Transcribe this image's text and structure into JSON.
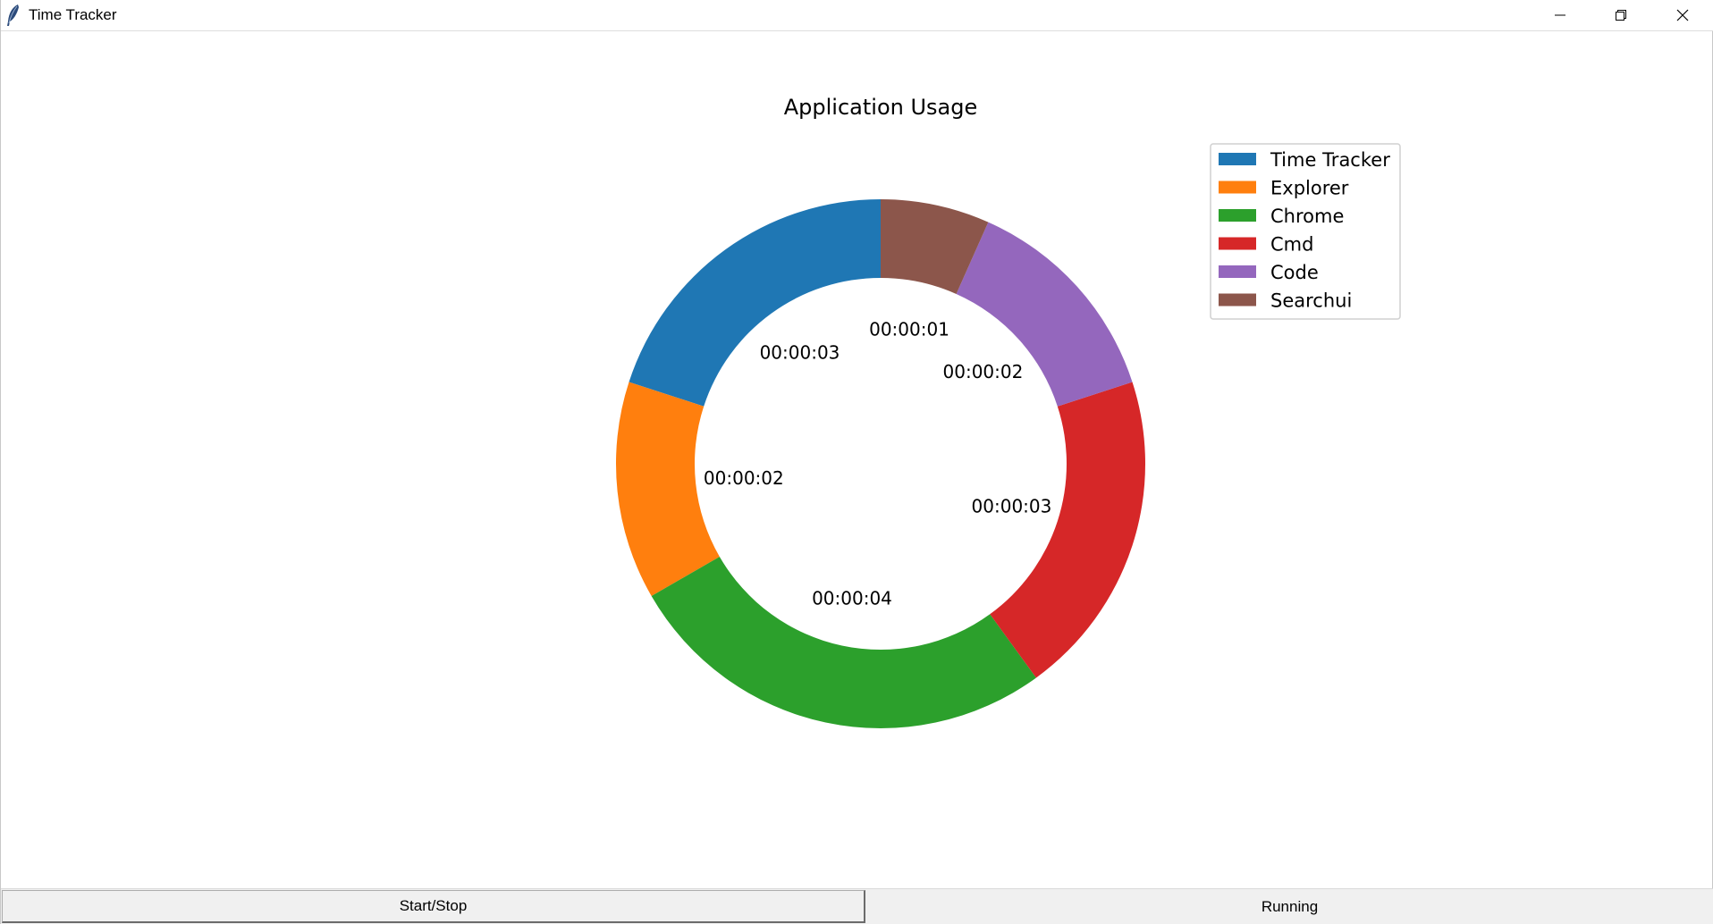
{
  "window": {
    "title": "Time Tracker",
    "app_icon": "feather-icon",
    "controls": [
      "minimize-icon",
      "restore-icon",
      "close-icon"
    ]
  },
  "chart_data": {
    "type": "pie",
    "subtype": "donut",
    "title": "Application Usage",
    "labels": [
      "Time Tracker",
      "Explorer",
      "Chrome",
      "Cmd",
      "Code",
      "Searchui"
    ],
    "values": [
      3,
      2,
      4,
      3,
      2,
      1
    ],
    "value_labels": [
      "00:00:03",
      "00:00:02",
      "00:00:04",
      "00:00:03",
      "00:00:02",
      "00:00:01"
    ],
    "colors": [
      "#1f77b4",
      "#ff7f0e",
      "#2ca02c",
      "#d62728",
      "#9467bd",
      "#8c564b"
    ],
    "start_angle_deg": 90,
    "direction": "counterclockwise",
    "legend_position": "upper-right"
  },
  "footer": {
    "button_label": "Start/Stop",
    "status": "Running"
  }
}
